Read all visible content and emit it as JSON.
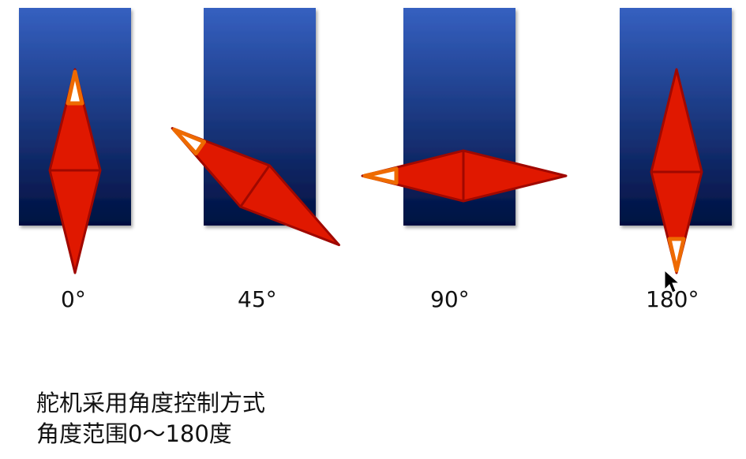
{
  "diagram": {
    "servos": [
      {
        "angle": 0,
        "label": "0°"
      },
      {
        "angle": 45,
        "label": "45°"
      },
      {
        "angle": 90,
        "label": "90°"
      },
      {
        "angle": 180,
        "label": "180°"
      }
    ],
    "colors": {
      "panel_top": "#3560c0",
      "panel_bottom": "#001040",
      "arm_fill": "#e01800",
      "arm_stroke": "#a00800",
      "marker": "#ee6a00"
    }
  },
  "text": {
    "line1": "舵机采用角度控制方式",
    "line2": "角度范围0～180度"
  }
}
